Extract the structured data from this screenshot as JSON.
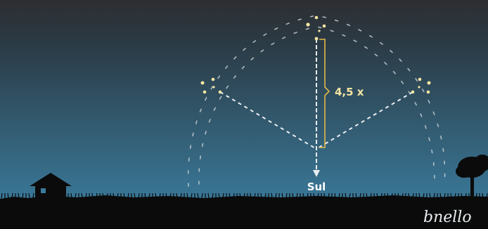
{
  "labels": {
    "multiplier": "4,5 x",
    "south": "Sul",
    "signature": "bnello"
  },
  "colors": {
    "sky_top": "#2d2e31",
    "sky_bottom": "#3c82a6",
    "ground": "#0b0b0b",
    "star": "#f4e7a3",
    "guide_line": "#e9eef0",
    "bracket": "#e1b84a",
    "label": "#ffffff",
    "multiplier_label": "#f5e4a2",
    "orbit_dash": "#c6ced3"
  },
  "icons": {
    "house": "house-silhouette-icon",
    "tree": "tree-silhouette-icon",
    "constellation": "southern-cross-icon",
    "arrow": "arrow-down-icon"
  }
}
